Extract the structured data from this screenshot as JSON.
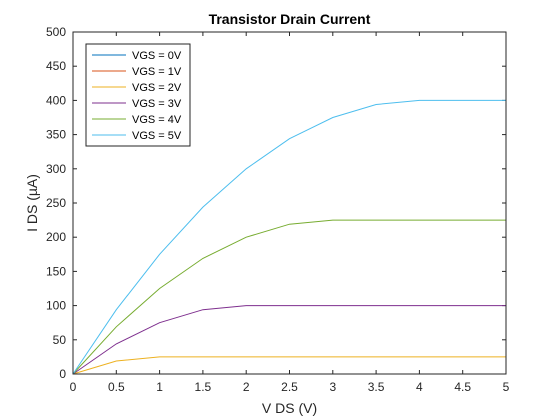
{
  "chart_data": {
    "type": "line",
    "title": "Transistor Drain Current",
    "xlabel": "V DS (V)",
    "ylabel": "I DS (µA)",
    "xlim": [
      0,
      5
    ],
    "ylim": [
      0,
      500
    ],
    "xticks": [
      "0",
      "0.5",
      "1",
      "1.5",
      "2",
      "2.5",
      "3",
      "3.5",
      "4",
      "4.5",
      "5"
    ],
    "yticks": [
      "0",
      "50",
      "100",
      "150",
      "200",
      "250",
      "300",
      "350",
      "400",
      "450",
      "500"
    ],
    "grid": false,
    "legend_position": "top-left",
    "x": [
      0,
      0.5,
      1,
      1.5,
      2,
      2.5,
      3,
      3.5,
      4,
      4.5,
      5
    ],
    "series": [
      {
        "name": "VGS = 0V",
        "color": "#0072BD",
        "values": [
          0,
          0,
          0,
          0,
          0,
          0,
          0,
          0,
          0,
          0,
          0
        ]
      },
      {
        "name": "VGS = 1V",
        "color": "#D95319",
        "values": [
          0,
          0,
          0,
          0,
          0,
          0,
          0,
          0,
          0,
          0,
          0
        ]
      },
      {
        "name": "VGS = 2V",
        "color": "#EDB120",
        "values": [
          0,
          19,
          25,
          25,
          25,
          25,
          25,
          25,
          25,
          25,
          25
        ]
      },
      {
        "name": "VGS = 3V",
        "color": "#7E2F8E",
        "values": [
          0,
          44,
          75,
          94,
          100,
          100,
          100,
          100,
          100,
          100,
          100
        ]
      },
      {
        "name": "VGS = 4V",
        "color": "#77AC30",
        "values": [
          0,
          69,
          125,
          169,
          200,
          219,
          225,
          225,
          225,
          225,
          225
        ]
      },
      {
        "name": "VGS = 5V",
        "color": "#4DBEEE",
        "values": [
          0,
          94,
          175,
          244,
          300,
          344,
          375,
          394,
          400,
          400,
          400
        ]
      }
    ]
  }
}
